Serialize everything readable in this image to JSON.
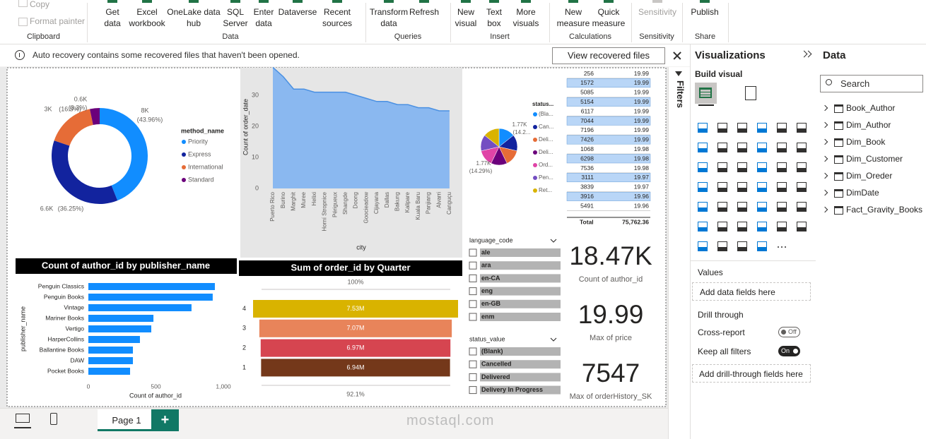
{
  "ribbon": {
    "groups": [
      {
        "label": "Clipboard",
        "items": [
          "Copy",
          "Format painter"
        ]
      },
      {
        "label": "Data",
        "items": [
          "Get data",
          "Excel workbook",
          "OneLake data hub",
          "SQL Server",
          "Enter data",
          "Dataverse",
          "Recent sources"
        ]
      },
      {
        "label": "Queries",
        "items": [
          "Transform data",
          "Refresh"
        ]
      },
      {
        "label": "Insert",
        "items": [
          "New visual",
          "Text box",
          "More visuals"
        ]
      },
      {
        "label": "Calculations",
        "items": [
          "New measure",
          "Quick measure"
        ]
      },
      {
        "label": "Sensitivity",
        "items": [
          "Sensitivity"
        ]
      },
      {
        "label": "Share",
        "items": [
          "Publish"
        ]
      }
    ]
  },
  "notification": {
    "message": "Auto recovery contains some recovered files that haven't been opened.",
    "button": "View recovered files"
  },
  "report": {
    "donut": {
      "legend_title": "method_name",
      "categories": [
        "Priority",
        "Express",
        "International",
        "Standard"
      ],
      "colors": [
        "#118DFF",
        "#12239E",
        "#E66C37",
        "#6B007B"
      ],
      "values": [
        8000,
        6600,
        3000,
        600
      ],
      "value_labels": [
        "8K",
        "6.6K",
        "3K",
        "0.6K"
      ],
      "percents": [
        43.96,
        36.25,
        16.5,
        3.3
      ],
      "percent_labels": [
        "(43.96%)",
        "(36.25%)",
        "(16.5%)",
        "(3.3%)"
      ]
    },
    "area": {
      "type": "area",
      "y_label": "Count of order_date",
      "x_label": "city",
      "categories": [
        "Puerto Rico",
        "Burino",
        "Marghit",
        "Muree",
        "Helixi",
        "Horní Stropnice",
        "Périgueux",
        "Shangde",
        "Doong",
        "Goocieadow",
        "Cijayana",
        "Dallas",
        "Bakung",
        "Kalipare",
        "Kuala Baru",
        "Panjiang",
        "Alvarri",
        "Canguçu"
      ],
      "values": [
        39,
        36,
        32,
        32,
        31,
        31,
        31,
        31,
        30,
        29,
        28,
        28,
        27,
        27,
        26,
        26,
        25,
        25
      ],
      "color": "#8AB8F0",
      "line_color": "#4A90E2",
      "ylim": [
        0,
        39
      ],
      "yticks": [
        0,
        10,
        20,
        30
      ]
    },
    "pie": {
      "legend_title": "status...",
      "categories": [
        "(Bla...",
        "Can...",
        "Deli...",
        "Deli...",
        "Ord...",
        "Pen...",
        "Ret..."
      ],
      "colors": [
        "#118DFF",
        "#12239E",
        "#E66C37",
        "#6B007B",
        "#E044A7",
        "#744EC2",
        "#D9B300"
      ],
      "values": [
        1770,
        1770,
        1770,
        1770,
        1770,
        1770,
        1770
      ],
      "value_labels": [
        "1.77K",
        null,
        null,
        null,
        null,
        "1.77K",
        null
      ],
      "percent_labels": [
        "(14.2...",
        null,
        null,
        null,
        null,
        "(14.29%)",
        null
      ]
    },
    "table": {
      "rows": [
        [
          256,
          19.99
        ],
        [
          1572,
          19.99
        ],
        [
          5085,
          19.99
        ],
        [
          5154,
          19.99
        ],
        [
          6117,
          19.99
        ],
        [
          7044,
          19.99
        ],
        [
          7196,
          19.99
        ],
        [
          7426,
          19.99
        ],
        [
          1068,
          19.98
        ],
        [
          6298,
          19.98
        ],
        [
          7536,
          19.98
        ],
        [
          3111,
          19.97
        ],
        [
          3839,
          19.97
        ],
        [
          3916,
          19.96
        ],
        [
          5491,
          19.96
        ]
      ],
      "total": [
        "Total",
        "75,762.36"
      ]
    },
    "cards": [
      {
        "value": "18.47K",
        "label": "Count of author_id"
      },
      {
        "value": 19.99,
        "label": "Max of price"
      },
      {
        "value": 7547,
        "label": "Max of orderHistory_SK"
      }
    ],
    "bar": {
      "type": "bar",
      "title": "Count of author_id by publisher_name",
      "y_label": "publisher_name",
      "x_label": "Count of author_id",
      "categories": [
        "Penguin Classics",
        "Penguin Books",
        "Vintage",
        "Mariner Books",
        "Vertigo",
        "HarperCollins",
        "Ballantine Books",
        "DAW",
        "Pocket Books"
      ],
      "values": [
        937,
        921,
        764,
        482,
        466,
        382,
        330,
        330,
        309
      ],
      "color": "#118DFF",
      "xlim": [
        0,
        1000
      ],
      "xticks": [
        0,
        500,
        {
          "value": 1000,
          "label": "1,000"
        }
      ]
    },
    "funnel": {
      "type": "funnel",
      "title": "Sum of order_id by Quarter",
      "categories": [
        "4",
        "3",
        "2",
        "1"
      ],
      "values": [
        7530000,
        7070000,
        6970000,
        6940000
      ],
      "value_labels": [
        "7.53M",
        "7.07M",
        "6.97M",
        "6.94M"
      ],
      "colors": [
        "#D9B300",
        "#E8845A",
        "#D64550",
        "#74381A"
      ],
      "conversion": [
        {
          "value": 100,
          "label": "100%"
        },
        {
          "value": 92.1,
          "label": "92.1%"
        }
      ]
    },
    "slicers": [
      {
        "title": "language_code",
        "items": [
          "ale",
          "ara",
          "en-CA",
          "eng",
          "en-GB",
          "enm"
        ]
      },
      {
        "title": "status_value",
        "items": [
          "(Blank)",
          "Cancelled",
          "Delivered",
          "Delivery In Progress"
        ]
      }
    ]
  },
  "filters": {
    "title": "Filters"
  },
  "visualizations": {
    "title": "Visualizations",
    "build": "Build visual",
    "values": "Values",
    "values_box": "Add data fields here",
    "drill": "Drill through",
    "cross": "Cross-report",
    "cross_state": "Off",
    "keep": "Keep all filters",
    "keep_state": "On",
    "drill_box": "Add drill-through fields here"
  },
  "data_pane": {
    "title": "Data",
    "search": "Search",
    "tables": [
      "Book_Author",
      "Dim_Author",
      "Dim_Book",
      "Dim_Customer",
      "Dim_Oreder",
      "DimDate",
      "Fact_Gravity_Books"
    ]
  },
  "pages": {
    "tabs": [
      "Page 1"
    ],
    "add": "+"
  },
  "watermark": "mostaql.com"
}
